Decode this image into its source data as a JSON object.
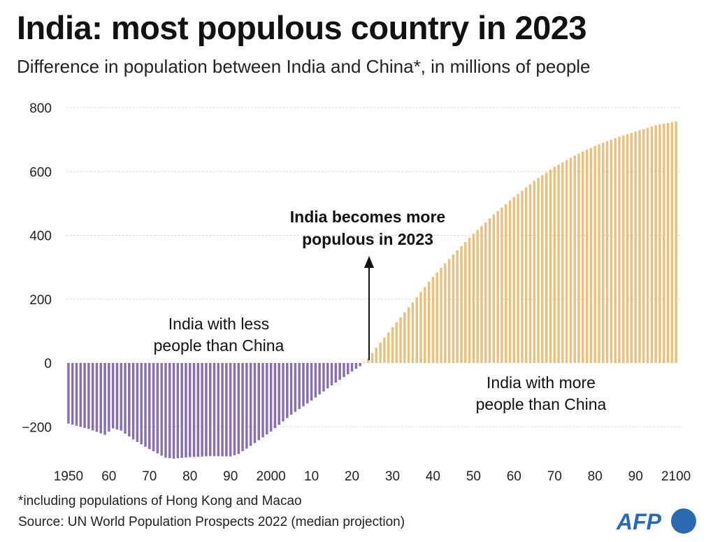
{
  "title": "India: most populous country in 2023",
  "subtitle": "Difference in population between India and China*, in millions of people",
  "footnote": "*including  populations of Hong Kong and Macao",
  "source": "Source: UN World Population Prospects 2022 (median projection)",
  "logo_text": "AFP",
  "colors": {
    "negative": "#8a6fae",
    "positive": "#e9c07e",
    "grid": "#cfcfcf",
    "text": "#222222",
    "logo": "#2b69b0"
  },
  "annotations": {
    "less_line1": "India with less",
    "less_line2": "people than China",
    "more_line1": "India with more",
    "more_line2": "people than China",
    "crossover_line1": "India becomes more",
    "crossover_line2": "populous in 2023"
  },
  "chart_data": {
    "type": "bar",
    "title": "India: most populous country in 2023",
    "xlabel": "",
    "ylabel": "",
    "ylim": [
      -300,
      800
    ],
    "y_ticks": [
      800,
      600,
      400,
      200,
      0,
      -200
    ],
    "y_tick_labels": [
      "800",
      "600",
      "400",
      "200",
      "0",
      "−200"
    ],
    "x_ticks": [
      1950,
      1960,
      1970,
      1980,
      1990,
      2000,
      2010,
      2020,
      2030,
      2040,
      2050,
      2060,
      2070,
      2080,
      2090,
      2100
    ],
    "x_tick_labels": [
      "1950",
      "60",
      "70",
      "80",
      "90",
      "2000",
      "10",
      "20",
      "30",
      "40",
      "50",
      "60",
      "70",
      "80",
      "90",
      "2100"
    ],
    "grid": true,
    "x_range": [
      1950,
      2100
    ],
    "keypoints": [
      [
        1950,
        -190
      ],
      [
        1955,
        -207
      ],
      [
        1959,
        -225
      ],
      [
        1961,
        -205
      ],
      [
        1963,
        -212
      ],
      [
        1966,
        -240
      ],
      [
        1970,
        -270
      ],
      [
        1974,
        -297
      ],
      [
        1976,
        -300
      ],
      [
        1980,
        -295
      ],
      [
        1985,
        -292
      ],
      [
        1990,
        -293
      ],
      [
        1992,
        -285
      ],
      [
        1995,
        -260
      ],
      [
        2000,
        -215
      ],
      [
        2005,
        -162
      ],
      [
        2010,
        -118
      ],
      [
        2015,
        -70
      ],
      [
        2020,
        -27
      ],
      [
        2022,
        -10
      ],
      [
        2023,
        3
      ],
      [
        2024,
        15
      ],
      [
        2030,
        112
      ],
      [
        2035,
        190
      ],
      [
        2040,
        270
      ],
      [
        2045,
        340
      ],
      [
        2050,
        405
      ],
      [
        2055,
        465
      ],
      [
        2060,
        520
      ],
      [
        2065,
        570
      ],
      [
        2070,
        615
      ],
      [
        2075,
        650
      ],
      [
        2080,
        680
      ],
      [
        2085,
        705
      ],
      [
        2090,
        725
      ],
      [
        2095,
        745
      ],
      [
        2100,
        757
      ]
    ]
  }
}
